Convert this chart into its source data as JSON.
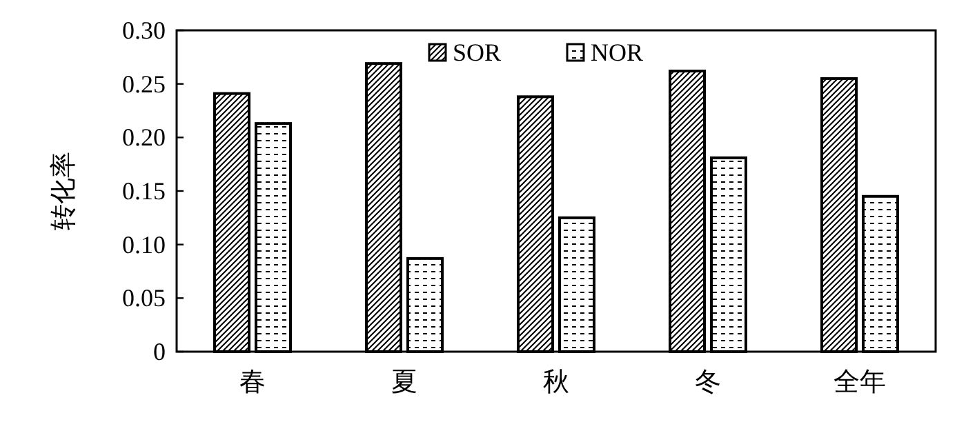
{
  "chart_data": {
    "type": "bar",
    "ylabel": "转化率",
    "categories": [
      "春",
      "夏",
      "秋",
      "冬",
      "全年"
    ],
    "series": [
      {
        "name": "SOR",
        "color": "#000000",
        "values": [
          0.241,
          0.269,
          0.238,
          0.262,
          0.255
        ]
      },
      {
        "name": "NOR",
        "color": "#000000",
        "values": [
          0.213,
          0.087,
          0.125,
          0.181,
          0.145
        ]
      }
    ],
    "ylim": [
      0,
      0.3
    ],
    "yticks": [
      {
        "value": 0,
        "label": "0"
      },
      {
        "value": 0.05,
        "label": "0.05"
      },
      {
        "value": 0.1,
        "label": "0.10"
      },
      {
        "value": 0.15,
        "label": "0.15"
      },
      {
        "value": 0.2,
        "label": "0.20"
      },
      {
        "value": 0.25,
        "label": "0.25"
      },
      {
        "value": 0.3,
        "label": "0.30"
      }
    ],
    "grid": false,
    "legend": "top"
  }
}
